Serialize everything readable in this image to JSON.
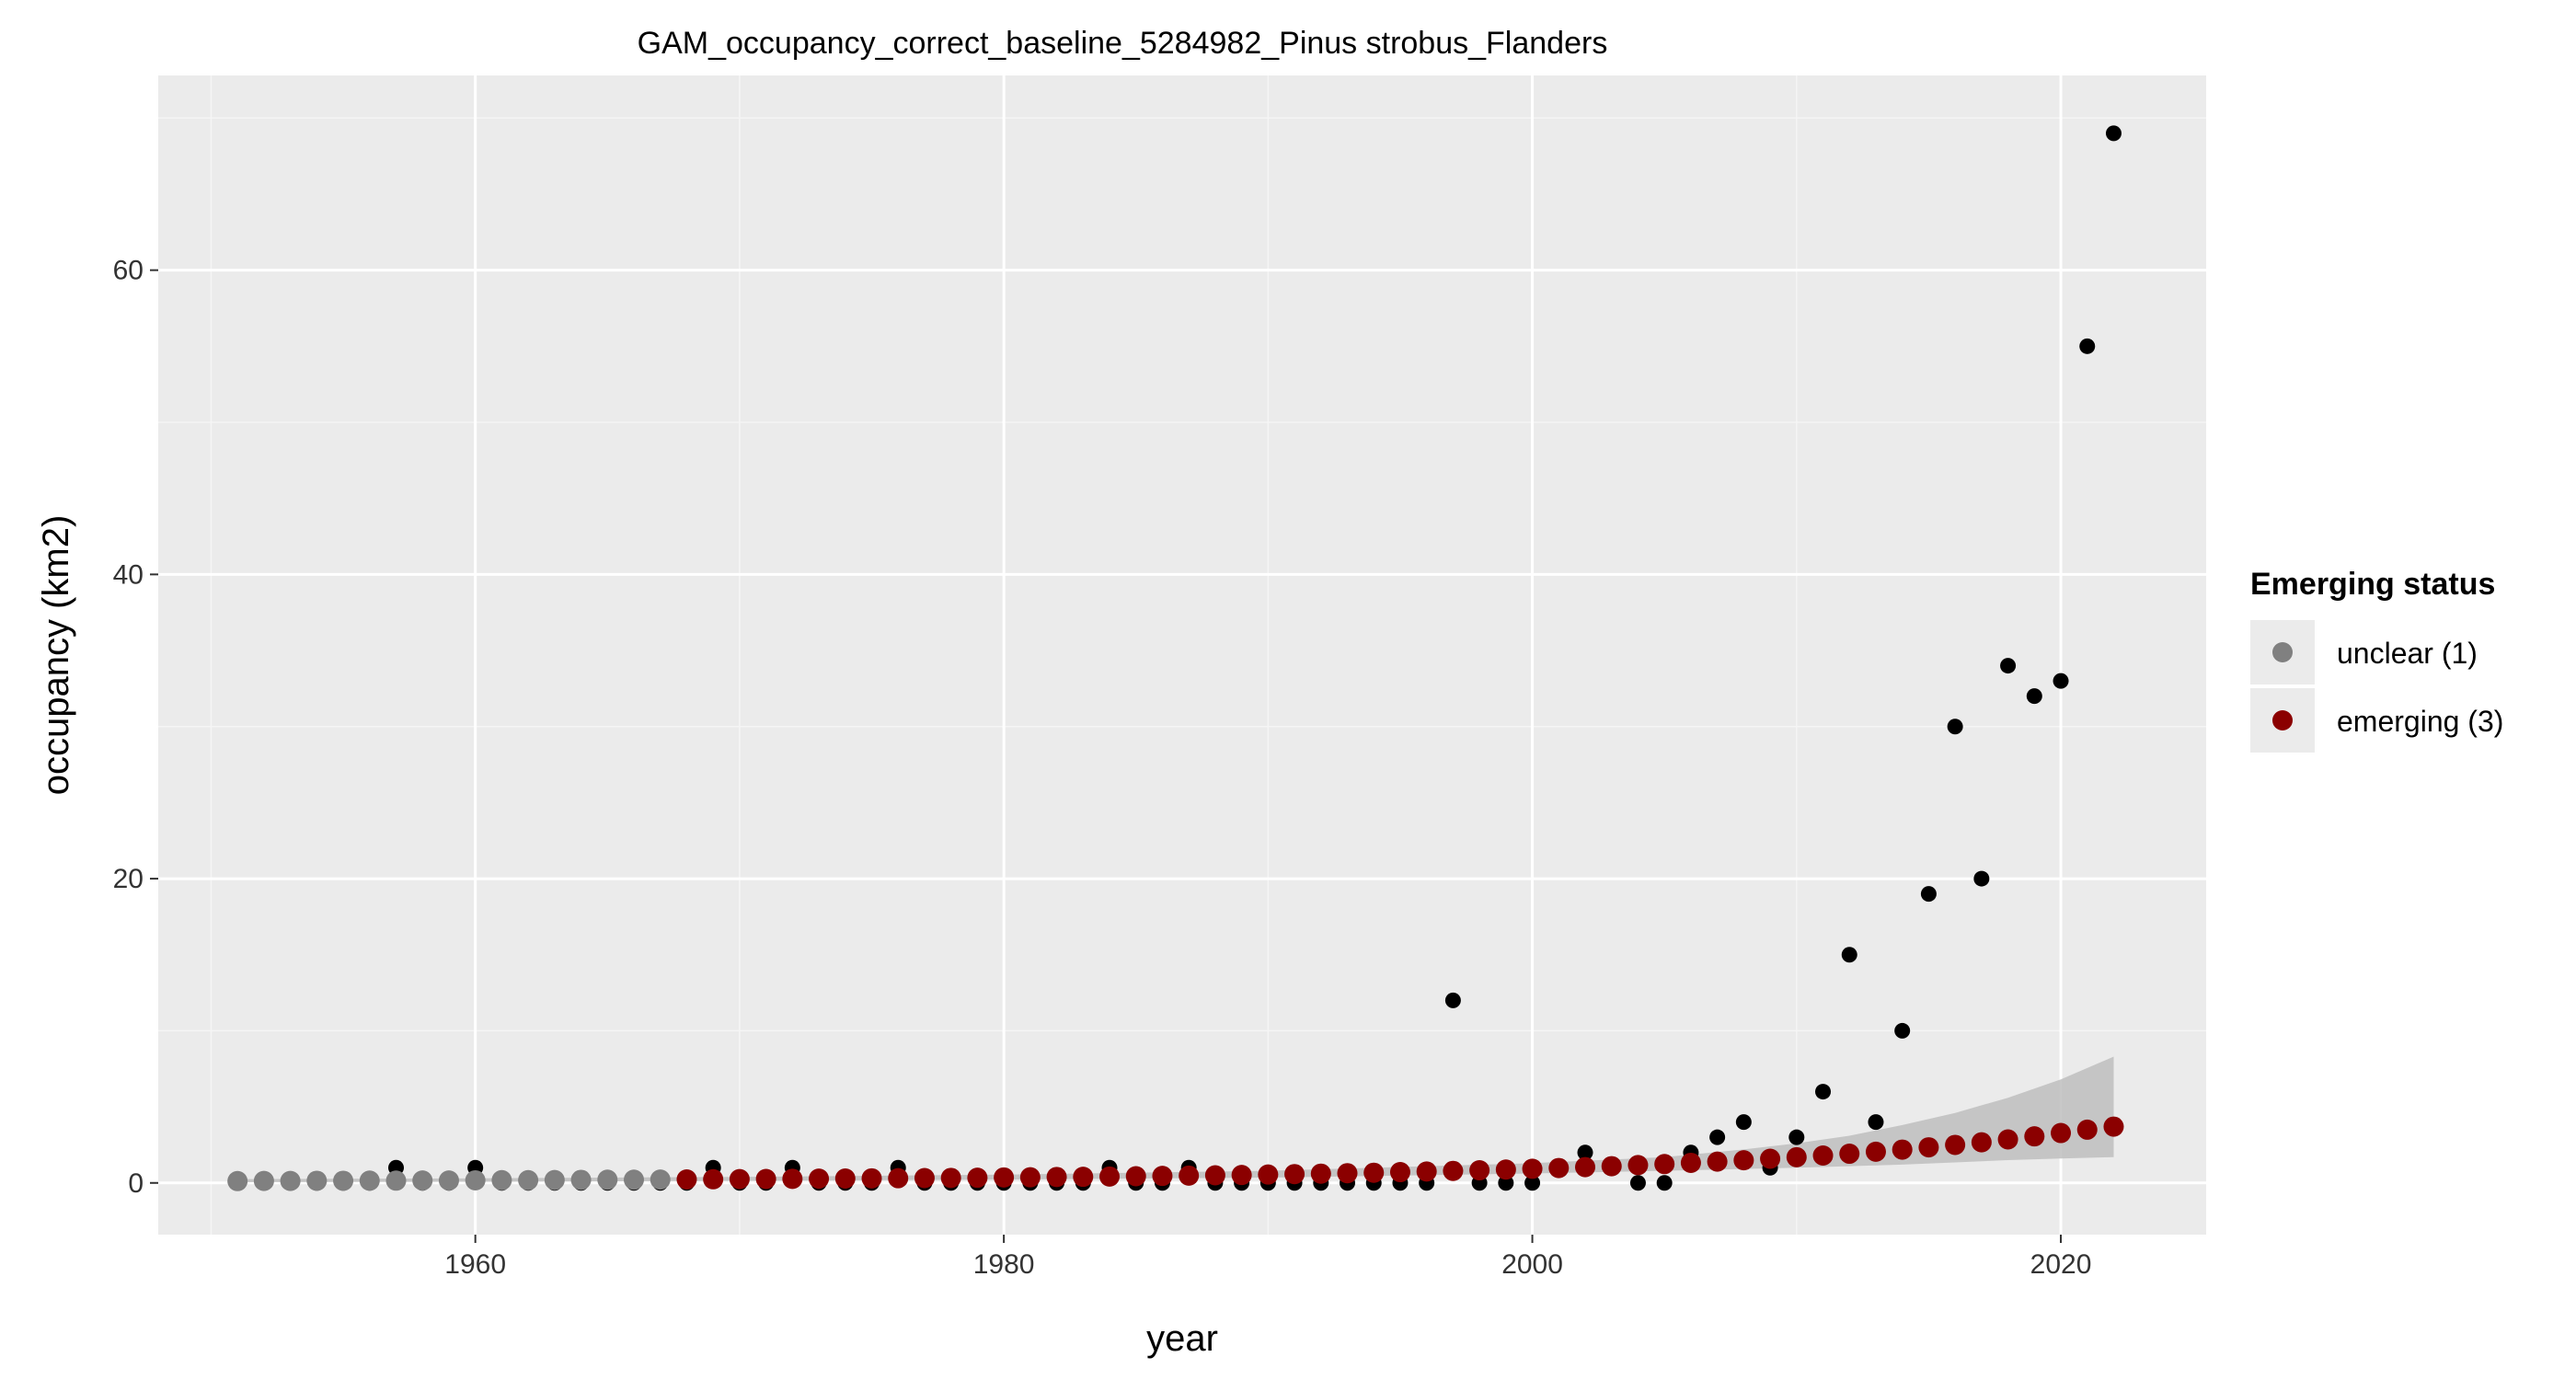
{
  "chart_data": {
    "type": "scatter",
    "title": "GAM_occupancy_correct_baseline_5284982_Pinus strobus_Flanders",
    "xlabel": "year",
    "ylabel": "occupancy (km2)",
    "xlim": [
      1948,
      2025.5
    ],
    "ylim": [
      -3.4,
      72.8
    ],
    "x_ticks": [
      1960,
      1980,
      2000,
      2020
    ],
    "y_ticks": [
      0,
      20,
      40,
      60
    ],
    "x_tick_labels": [
      "1960",
      "1980",
      "2000",
      "2020"
    ],
    "y_tick_labels": [
      "0",
      "20",
      "40",
      "60"
    ],
    "grid": true,
    "legend": {
      "title": "Emerging status",
      "position": "right",
      "entries": [
        {
          "label": "unclear (1)",
          "color": "#808080"
        },
        {
          "label": "emerging (3)",
          "color": "#8B0000"
        }
      ]
    },
    "observed": {
      "color": "#000000",
      "x": [
        1951,
        1952,
        1953,
        1954,
        1955,
        1956,
        1957,
        1958,
        1959,
        1960,
        1961,
        1962,
        1963,
        1964,
        1965,
        1966,
        1967,
        1968,
        1969,
        1970,
        1971,
        1972,
        1973,
        1974,
        1975,
        1976,
        1977,
        1978,
        1979,
        1980,
        1981,
        1982,
        1983,
        1984,
        1985,
        1986,
        1987,
        1988,
        1989,
        1990,
        1991,
        1992,
        1993,
        1994,
        1995,
        1996,
        1997,
        1998,
        1999,
        2000,
        2001,
        2002,
        2003,
        2004,
        2005,
        2006,
        2007,
        2008,
        2009,
        2010,
        2011,
        2012,
        2013,
        2014,
        2015,
        2016,
        2017,
        2018,
        2019,
        2020,
        2021,
        2022
      ],
      "y": [
        0,
        0,
        0,
        0,
        0,
        0,
        1,
        0,
        0,
        1,
        0,
        0,
        0,
        0,
        0,
        0,
        0,
        0,
        1,
        0,
        0,
        1,
        0,
        0,
        0,
        1,
        0,
        0,
        0,
        0,
        0,
        0,
        0,
        1,
        0,
        0,
        1,
        0,
        0,
        0,
        0,
        0,
        0,
        0,
        0,
        0,
        12,
        0,
        0,
        0,
        1,
        2,
        1,
        0,
        0,
        2,
        3,
        4,
        1,
        3,
        6,
        15,
        4,
        10,
        19,
        30,
        20,
        34,
        32,
        33,
        55,
        69
      ]
    },
    "fitted": {
      "x": [
        1951,
        1952,
        1953,
        1954,
        1955,
        1956,
        1957,
        1958,
        1959,
        1960,
        1961,
        1962,
        1963,
        1964,
        1965,
        1966,
        1967,
        1968,
        1969,
        1970,
        1971,
        1972,
        1973,
        1974,
        1975,
        1976,
        1977,
        1978,
        1979,
        1980,
        1981,
        1982,
        1983,
        1984,
        1985,
        1986,
        1987,
        1988,
        1989,
        1990,
        1991,
        1992,
        1993,
        1994,
        1995,
        1996,
        1997,
        1998,
        1999,
        2000,
        2001,
        2002,
        2003,
        2004,
        2005,
        2006,
        2007,
        2008,
        2009,
        2010,
        2011,
        2012,
        2013,
        2014,
        2015,
        2016,
        2017,
        2018,
        2019,
        2020,
        2021,
        2022
      ],
      "y": [
        0.12,
        0.13,
        0.13,
        0.14,
        0.14,
        0.15,
        0.15,
        0.16,
        0.16,
        0.17,
        0.18,
        0.18,
        0.19,
        0.2,
        0.21,
        0.21,
        0.22,
        0.23,
        0.24,
        0.25,
        0.26,
        0.27,
        0.28,
        0.29,
        0.3,
        0.31,
        0.32,
        0.33,
        0.34,
        0.36,
        0.37,
        0.39,
        0.4,
        0.42,
        0.44,
        0.46,
        0.48,
        0.5,
        0.52,
        0.55,
        0.58,
        0.61,
        0.64,
        0.67,
        0.71,
        0.75,
        0.79,
        0.83,
        0.88,
        0.93,
        0.98,
        1.04,
        1.1,
        1.17,
        1.24,
        1.32,
        1.4,
        1.49,
        1.59,
        1.69,
        1.8,
        1.92,
        2.05,
        2.19,
        2.34,
        2.5,
        2.67,
        2.86,
        3.06,
        3.28,
        3.5,
        3.7
      ],
      "status": [
        "unclear (1)",
        "unclear (1)",
        "unclear (1)",
        "unclear (1)",
        "unclear (1)",
        "unclear (1)",
        "unclear (1)",
        "unclear (1)",
        "unclear (1)",
        "unclear (1)",
        "unclear (1)",
        "unclear (1)",
        "unclear (1)",
        "unclear (1)",
        "unclear (1)",
        "unclear (1)",
        "unclear (1)",
        "emerging (3)",
        "emerging (3)",
        "emerging (3)",
        "emerging (3)",
        "emerging (3)",
        "emerging (3)",
        "emerging (3)",
        "emerging (3)",
        "emerging (3)",
        "emerging (3)",
        "emerging (3)",
        "emerging (3)",
        "emerging (3)",
        "emerging (3)",
        "emerging (3)",
        "emerging (3)",
        "emerging (3)",
        "emerging (3)",
        "emerging (3)",
        "emerging (3)",
        "emerging (3)",
        "emerging (3)",
        "emerging (3)",
        "emerging (3)",
        "emerging (3)",
        "emerging (3)",
        "emerging (3)",
        "emerging (3)",
        "emerging (3)",
        "emerging (3)",
        "emerging (3)",
        "emerging (3)",
        "emerging (3)",
        "emerging (3)",
        "emerging (3)",
        "emerging (3)",
        "emerging (3)",
        "emerging (3)",
        "emerging (3)",
        "emerging (3)",
        "emerging (3)",
        "emerging (3)",
        "emerging (3)",
        "emerging (3)",
        "emerging (3)",
        "emerging (3)",
        "emerging (3)",
        "emerging (3)",
        "emerging (3)",
        "emerging (3)",
        "emerging (3)",
        "emerging (3)",
        "emerging (3)",
        "emerging (3)",
        "emerging (3)"
      ]
    },
    "ribbon": {
      "color": "#bebebe",
      "x": [
        1951,
        1960,
        1970,
        1980,
        1990,
        2000,
        2005,
        2008,
        2010,
        2012,
        2014,
        2016,
        2018,
        2020,
        2022
      ],
      "lower": [
        0.05,
        0.08,
        0.14,
        0.22,
        0.35,
        0.62,
        0.8,
        0.92,
        1.0,
        1.1,
        1.2,
        1.35,
        1.5,
        1.6,
        1.7
      ],
      "upper": [
        0.25,
        0.3,
        0.4,
        0.55,
        0.8,
        1.3,
        1.7,
        2.2,
        2.6,
        3.1,
        3.8,
        4.6,
        5.6,
        6.8,
        8.3
      ]
    }
  }
}
